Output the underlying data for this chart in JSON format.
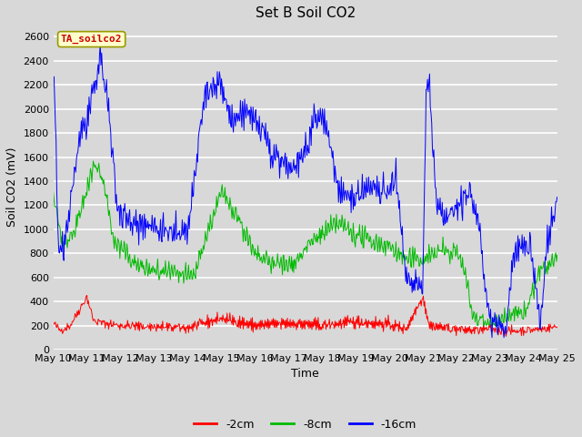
{
  "title": "Set B Soil CO2",
  "ylabel": "Soil CO2 (mV)",
  "xlabel": "Time",
  "xlim_days": [
    10,
    25
  ],
  "ylim": [
    0,
    2700
  ],
  "yticks": [
    0,
    200,
    400,
    600,
    800,
    1000,
    1200,
    1400,
    1600,
    1800,
    2000,
    2200,
    2400,
    2600
  ],
  "xtick_labels": [
    "May 10",
    "May 11",
    "May 12",
    "May 13",
    "May 14",
    "May 15",
    "May 16",
    "May 17",
    "May 18",
    "May 19",
    "May 20",
    "May 21",
    "May 22",
    "May 23",
    "May 24",
    "May 25"
  ],
  "colors": {
    "red": "#ff0000",
    "green": "#00bb00",
    "blue": "#0000ff"
  },
  "legend_labels": [
    "-2cm",
    "-8cm",
    "-16cm"
  ],
  "annotation_text": "TA_soilco2",
  "annotation_color": "#cc0000",
  "annotation_bg": "#ffffcc",
  "annotation_border": "#999900",
  "fig_bg_color": "#d8d8d8",
  "ax_bg_color": "#d8d8d8",
  "grid_color": "#ffffff",
  "title_fontsize": 11,
  "label_fontsize": 9,
  "tick_fontsize": 8,
  "legend_fontsize": 9
}
